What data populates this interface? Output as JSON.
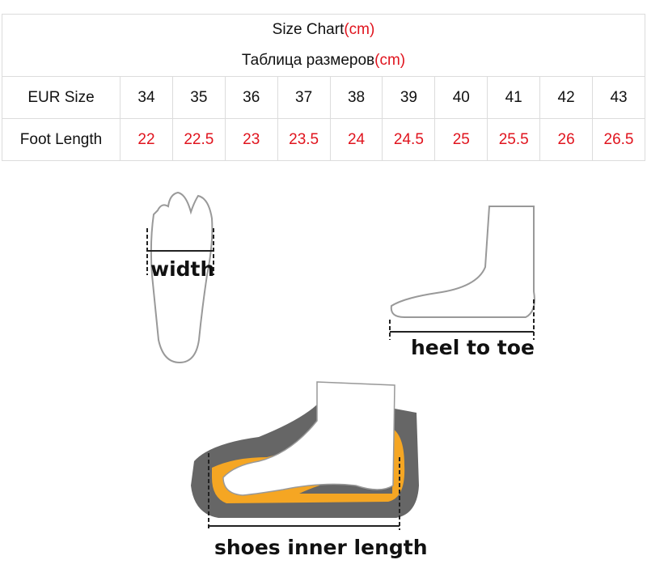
{
  "title": {
    "text": "Size Chart",
    "unit": "(cm)"
  },
  "subtitle": {
    "text": "Таблица размеров",
    "unit": "(cm)"
  },
  "rows": {
    "eur": {
      "label": "EUR Size",
      "values": [
        "34",
        "35",
        "36",
        "37",
        "38",
        "39",
        "40",
        "41",
        "42",
        "43"
      ]
    },
    "foot": {
      "label": "Foot Length",
      "values": [
        "22",
        "22.5",
        "23",
        "23.5",
        "24",
        "24.5",
        "25",
        "25.5",
        "26",
        "26.5"
      ]
    }
  },
  "diagrams": {
    "width": "width",
    "heel_to_toe": "heel to toe",
    "inner_length": "shoes inner length"
  },
  "colors": {
    "accent_red": "#e0141e",
    "insole_orange": "#f5a623",
    "sole_gray": "#666666"
  }
}
